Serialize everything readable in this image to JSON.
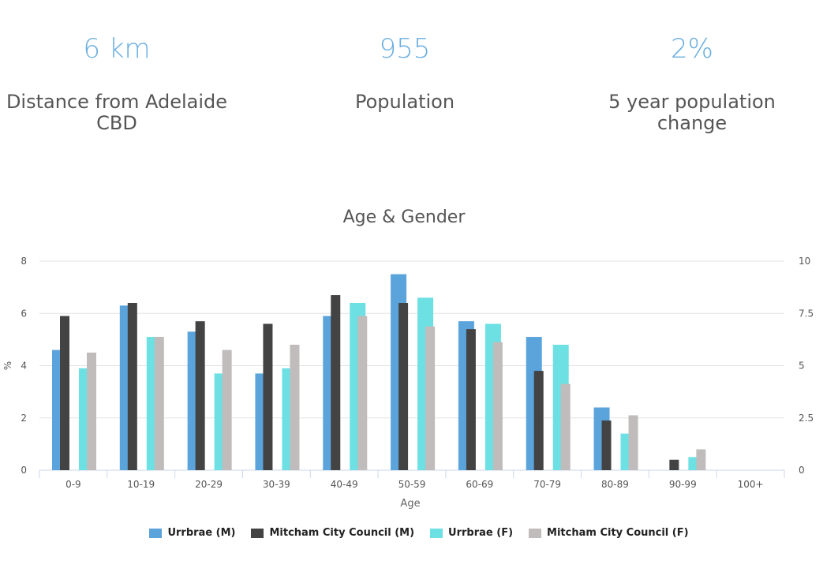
{
  "stats": [
    {
      "value": "6 km",
      "label": "Distance from Adelaide CBD"
    },
    {
      "value": "955",
      "label": "Population"
    },
    {
      "value": "2%",
      "label": "5 year population change"
    }
  ],
  "chart_data": {
    "type": "bar",
    "title": "Age & Gender",
    "xlabel": "Age",
    "ylabel": "%",
    "ylim": [
      0,
      8
    ],
    "y_ticks": [
      "0",
      "2",
      "4",
      "6",
      "8"
    ],
    "y2lim": [
      0,
      10
    ],
    "y2_ticks": [
      "0",
      "2.5",
      "5",
      "7.5",
      "10"
    ],
    "grid": true,
    "legend_position": "bottom",
    "categories": [
      "0-9",
      "10-19",
      "20-29",
      "30-39",
      "40-49",
      "50-59",
      "60-69",
      "70-79",
      "80-89",
      "90-99",
      "100+"
    ],
    "series": [
      {
        "name": "Urrbrae (M)",
        "color": "#5ba3db",
        "axis": "left",
        "values": [
          4.6,
          6.3,
          5.3,
          3.7,
          5.9,
          7.5,
          5.7,
          5.1,
          2.4,
          0,
          0
        ]
      },
      {
        "name": "Mitcham City Council (M)",
        "color": "#434343",
        "axis": "left",
        "values": [
          5.9,
          6.4,
          5.7,
          5.6,
          6.7,
          6.4,
          5.4,
          3.8,
          1.9,
          0.4,
          0
        ]
      },
      {
        "name": "Urrbrae (F)",
        "color": "#6ce0e3",
        "axis": "left",
        "values": [
          3.9,
          5.1,
          3.7,
          3.9,
          6.4,
          6.6,
          5.6,
          4.8,
          1.4,
          0.5,
          0
        ]
      },
      {
        "name": "Mitcham City Council (F)",
        "color": "#c0bcbc",
        "axis": "left",
        "values": [
          4.5,
          5.1,
          4.6,
          4.8,
          5.9,
          5.5,
          4.9,
          3.3,
          2.1,
          0.8,
          0
        ]
      }
    ]
  }
}
